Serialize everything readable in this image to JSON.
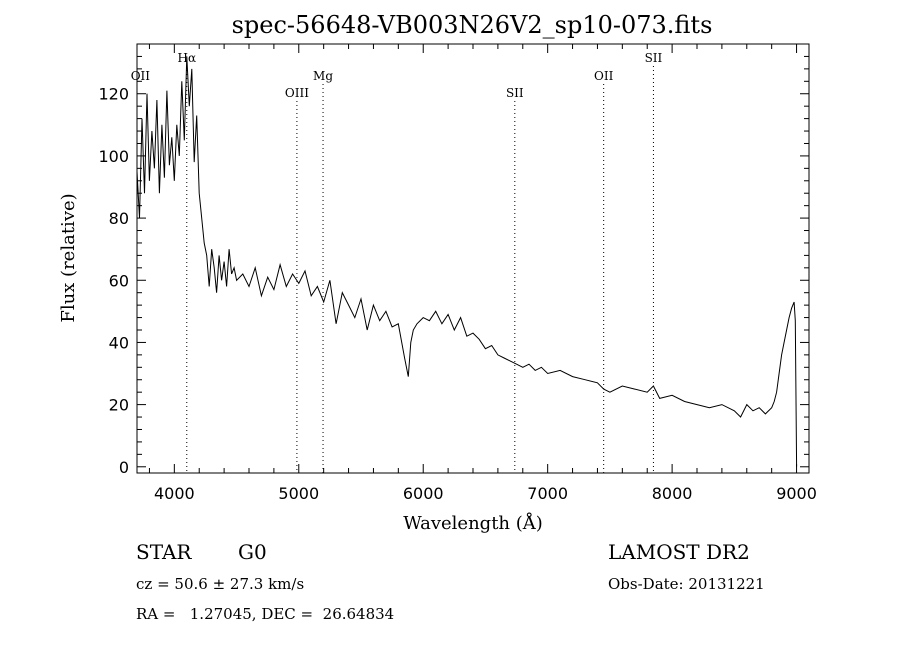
{
  "chart_data": {
    "type": "line",
    "title": "spec-56648-VB003N26V2_sp10-073.fits",
    "xlabel": "Wavelength (Å)",
    "ylabel": "Flux (relative)",
    "xlim": [
      3700,
      9100
    ],
    "ylim": [
      -2,
      136
    ],
    "x_ticks": [
      4000,
      5000,
      6000,
      7000,
      8000,
      9000
    ],
    "y_ticks": [
      0,
      20,
      40,
      60,
      80,
      100,
      120
    ],
    "grid": false,
    "series": [
      {
        "x": [
          3700,
          3720,
          3740,
          3760,
          3780,
          3800,
          3820,
          3840,
          3860,
          3880,
          3900,
          3920,
          3940,
          3960,
          3980,
          4000,
          4020,
          4040,
          4060,
          4080,
          4100,
          4120,
          4140,
          4160,
          4180,
          4200,
          4220,
          4240,
          4260,
          4280,
          4300,
          4320,
          4340,
          4360,
          4380,
          4400,
          4420,
          4440,
          4460,
          4480,
          4500,
          4550,
          4600,
          4650,
          4700,
          4750,
          4800,
          4850,
          4900,
          4950,
          5000,
          5050,
          5100,
          5150,
          5200,
          5250,
          5300,
          5350,
          5400,
          5450,
          5500,
          5550,
          5600,
          5650,
          5700,
          5750,
          5800,
          5850,
          5880,
          5900,
          5920,
          5950,
          6000,
          6050,
          6100,
          6150,
          6200,
          6250,
          6300,
          6350,
          6400,
          6450,
          6500,
          6550,
          6600,
          6650,
          6700,
          6750,
          6800,
          6850,
          6900,
          6950,
          7000,
          7100,
          7200,
          7300,
          7400,
          7450,
          7500,
          7600,
          7700,
          7800,
          7850,
          7900,
          8000,
          8100,
          8200,
          8300,
          8400,
          8500,
          8550,
          8600,
          8650,
          8700,
          8750,
          8800,
          8820,
          8840,
          8860,
          8880,
          8900,
          8920,
          8940,
          8960,
          8980,
          8990,
          9000
        ],
        "y": [
          95,
          80,
          112,
          88,
          120,
          92,
          108,
          96,
          118,
          88,
          110,
          93,
          121,
          97,
          106,
          92,
          110,
          100,
          124,
          105,
          132,
          116,
          128,
          98,
          113,
          88,
          80,
          72,
          68,
          58,
          70,
          64,
          56,
          68,
          60,
          66,
          58,
          70,
          62,
          64,
          60,
          62,
          58,
          64,
          55,
          61,
          57,
          65,
          58,
          62,
          59,
          63,
          55,
          58,
          53,
          60,
          46,
          56,
          52,
          48,
          54,
          44,
          52,
          47,
          50,
          45,
          46,
          35,
          29,
          40,
          44,
          46,
          48,
          47,
          50,
          46,
          49,
          44,
          48,
          42,
          43,
          41,
          38,
          39,
          36,
          35,
          34,
          33,
          32,
          33,
          31,
          32,
          30,
          31,
          29,
          28,
          27,
          25,
          24,
          26,
          25,
          24,
          26,
          22,
          23,
          21,
          20,
          19,
          20,
          18,
          16,
          20,
          18,
          19,
          17,
          19,
          21,
          24,
          30,
          36,
          40,
          44,
          48,
          51,
          53,
          47,
          0
        ]
      }
    ],
    "annotations": [
      {
        "label": "OII",
        "x": 3727,
        "line": false,
        "row": 1
      },
      {
        "label": "Hα",
        "x": 4100,
        "line": true,
        "row": 0
      },
      {
        "label": "OIII",
        "x": 4985,
        "line": true,
        "row": 2
      },
      {
        "label": "Mg",
        "x": 5195,
        "line": true,
        "row": 1
      },
      {
        "label": "SII",
        "x": 6736,
        "line": true,
        "row": 2
      },
      {
        "label": "OII",
        "x": 7450,
        "line": true,
        "row": 1
      },
      {
        "label": "SII",
        "x": 7850,
        "line": true,
        "row": 0
      }
    ]
  },
  "footer": {
    "object": "STAR",
    "subclass": "G0",
    "survey": "LAMOST DR2",
    "cz": "cz = 50.6 ± 27.3 km/s",
    "obs_date": "Obs-Date: 20131221",
    "coords": "RA =   1.27045, DEC =  26.64834"
  }
}
